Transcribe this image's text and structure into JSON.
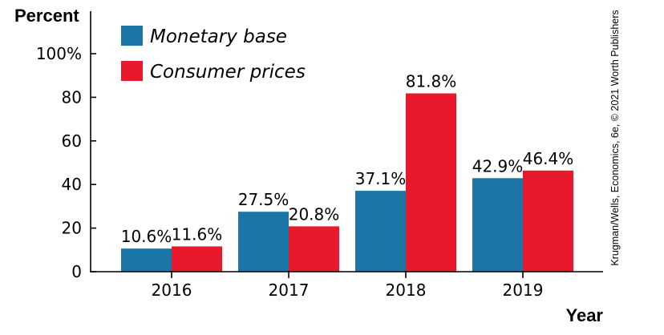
{
  "chart_data": {
    "type": "bar",
    "title": "",
    "ylabel": "Percent",
    "xlabel": "Year",
    "categories": [
      "2016",
      "2017",
      "2018",
      "2019"
    ],
    "series": [
      {
        "name": "Monetary base",
        "values": [
          10.6,
          27.5,
          37.1,
          42.9
        ],
        "labels": [
          "10.6%",
          "27.5%",
          "37.1%",
          "42.9%"
        ],
        "color": "#1b75a6"
      },
      {
        "name": "Consumer prices",
        "values": [
          11.6,
          20.8,
          81.8,
          46.4
        ],
        "labels": [
          "11.6%",
          "20.8%",
          "81.8%",
          "46.4%"
        ],
        "color": "#e8192c"
      }
    ],
    "ylim": [
      0,
      100
    ],
    "yticks": [
      0,
      20,
      40,
      60,
      80,
      100
    ],
    "ytick_labels": [
      "0",
      "20",
      "40",
      "60",
      "80",
      "100%"
    ],
    "grid": false,
    "legend": "top-left",
    "credit": "Krugman/Wells, Economics, 6e, © 2021 Worth Publishers"
  }
}
